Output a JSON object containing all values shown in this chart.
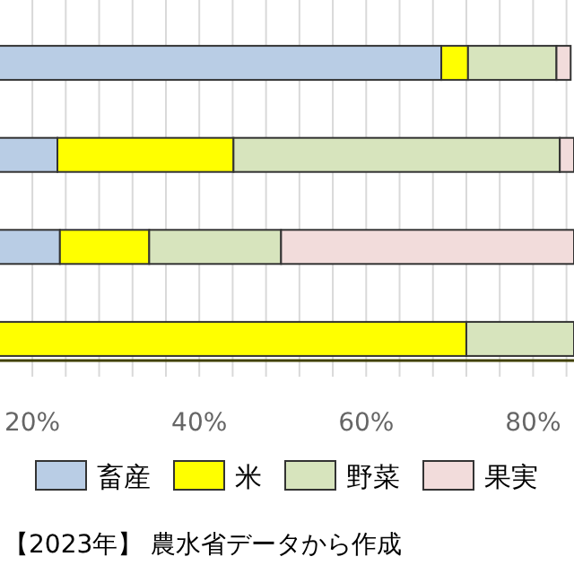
{
  "chart_data": {
    "type": "bar",
    "orientation": "horizontal",
    "stacked": true,
    "categories": [
      null,
      null,
      null,
      null
    ],
    "series": [
      {
        "name": "畜産",
        "color": "#b9cde5",
        "values": [
          69.0,
          23.0,
          23.3,
          null
        ]
      },
      {
        "name": "米",
        "color": "#ffff00",
        "values": [
          3.2,
          21.1,
          10.7,
          72.0
        ]
      },
      {
        "name": "野菜",
        "color": "#d7e4bd",
        "values": [
          10.6,
          39.1,
          15.8,
          12.9
        ]
      },
      {
        "name": "果実",
        "color": "#f2dcdb",
        "values": [
          1.7,
          1.7,
          35.1,
          null
        ]
      }
    ],
    "xlim": [
      0,
      84.9
    ],
    "xticks": [
      {
        "value": 20,
        "label": "20%"
      },
      {
        "value": 24,
        "label": null
      },
      {
        "value": 28,
        "label": null
      },
      {
        "value": 32,
        "label": null
      },
      {
        "value": 36,
        "label": null
      },
      {
        "value": 40,
        "label": "40%"
      },
      {
        "value": 44,
        "label": null
      },
      {
        "value": 48,
        "label": null
      },
      {
        "value": 52,
        "label": null
      },
      {
        "value": 56,
        "label": null
      },
      {
        "value": 60,
        "label": "60%"
      },
      {
        "value": 64,
        "label": null
      },
      {
        "value": 68,
        "label": null
      },
      {
        "value": 72,
        "label": null
      },
      {
        "value": 76,
        "label": null
      },
      {
        "value": 80,
        "label": "80%"
      },
      {
        "value": 84,
        "label": null
      }
    ],
    "grid": "x",
    "legend": "bottom",
    "annotations": [
      "【2023年】 農水省データから作成"
    ]
  }
}
